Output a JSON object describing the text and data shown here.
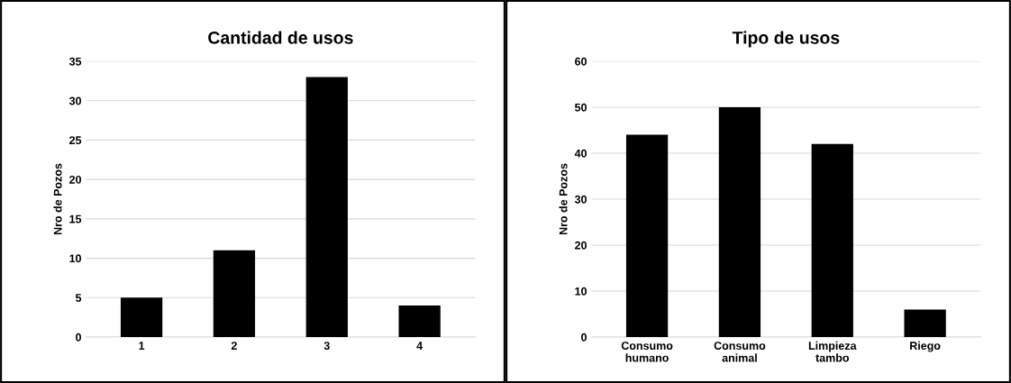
{
  "chart_data": [
    {
      "type": "bar",
      "title": "Cantidad de usos",
      "ylabel": "Nro de Pozos",
      "categories": [
        "1",
        "2",
        "3",
        "4"
      ],
      "values": [
        5,
        11,
        33,
        4
      ],
      "color": "#000000",
      "ylim": [
        0,
        35
      ],
      "yticks": [
        0,
        5,
        10,
        15,
        20,
        25,
        30,
        35
      ],
      "grid": "y",
      "legend": false
    },
    {
      "type": "bar",
      "title": "Tipo de usos",
      "ylabel": "Nro de Pozos",
      "categories": [
        "Consumo\nhumano",
        "Consumo\nanimal",
        "Limpieza\ntambo",
        "Riego"
      ],
      "values": [
        44,
        50,
        42,
        6
      ],
      "color": "#000000",
      "ylim": [
        0,
        60
      ],
      "yticks": [
        0,
        10,
        20,
        30,
        40,
        50,
        60
      ],
      "grid": "y",
      "legend": false
    }
  ]
}
